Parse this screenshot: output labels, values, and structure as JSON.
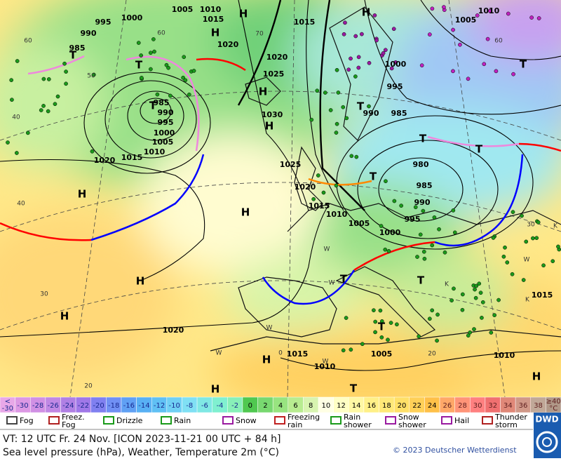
{
  "map_labels": [
    "1005",
    "1010",
    "1000",
    "995",
    "990",
    "985",
    "H",
    "1015",
    "H",
    "1020",
    "1020",
    "1025",
    "H",
    "1030",
    "H",
    "T",
    "T",
    "985",
    "T",
    "990",
    "995",
    "1000",
    "1005",
    "1010",
    "1015",
    "1020",
    "H",
    "H",
    "1025",
    "1020",
    "1015",
    "1010",
    "1005",
    "1000",
    "995",
    "990",
    "985",
    "980",
    "T",
    "T",
    "1000",
    "995",
    "990",
    "985",
    "T",
    "T",
    "1005",
    "1010",
    "1015",
    "H",
    "T",
    "H",
    "H",
    "1020",
    "H",
    "1015",
    "1010",
    "1005",
    "T",
    "T",
    "T",
    "T",
    "H",
    "1010",
    "1015",
    "H"
  ],
  "minor_labels": [
    "60",
    "70",
    "50",
    "40",
    "40",
    "30",
    "20",
    "20",
    "0",
    "W",
    "W",
    "W",
    "W",
    "W",
    "K",
    "K",
    "K",
    "W",
    "30",
    "60",
    "60"
  ],
  "scale": {
    "cells": [
      {
        "top": "<",
        "bottom": "-30",
        "color": "#e8a8e8"
      },
      {
        "bottom": "-30",
        "color": "#dc98e4"
      },
      {
        "bottom": "-28",
        "color": "#d090e4"
      },
      {
        "bottom": "-26",
        "color": "#c088e4"
      },
      {
        "bottom": "-24",
        "color": "#b080e4"
      },
      {
        "bottom": "-22",
        "color": "#a078e8"
      },
      {
        "bottom": "-20",
        "color": "#8080f0"
      },
      {
        "bottom": "-18",
        "color": "#7090f4"
      },
      {
        "bottom": "-16",
        "color": "#60a0f4"
      },
      {
        "bottom": "-14",
        "color": "#58b0f4"
      },
      {
        "bottom": "-12",
        "color": "#60c0f4"
      },
      {
        "bottom": "-10",
        "color": "#70d0f4"
      },
      {
        "bottom": "-8",
        "color": "#80e0f4"
      },
      {
        "bottom": "-6",
        "color": "#80e8e4"
      },
      {
        "bottom": "-4",
        "color": "#80f0d0"
      },
      {
        "bottom": "-2",
        "color": "#88f0b8"
      },
      {
        "bottom": "0",
        "color": "#50c850"
      },
      {
        "bottom": "2",
        "color": "#78d870"
      },
      {
        "bottom": "4",
        "color": "#98e480"
      },
      {
        "bottom": "6",
        "color": "#b8ec90"
      },
      {
        "bottom": "8",
        "color": "#d8f4b0"
      },
      {
        "bottom": "10",
        "color": "#ffffe4"
      },
      {
        "bottom": "12",
        "color": "#ffffc4"
      },
      {
        "bottom": "14",
        "color": "#fff8a4"
      },
      {
        "bottom": "16",
        "color": "#fff088"
      },
      {
        "bottom": "18",
        "color": "#ffe878"
      },
      {
        "bottom": "20",
        "color": "#ffe068"
      },
      {
        "bottom": "22",
        "color": "#ffd058"
      },
      {
        "bottom": "24",
        "color": "#ffc048"
      },
      {
        "bottom": "26",
        "color": "#ffa868"
      },
      {
        "bottom": "28",
        "color": "#ff9478"
      },
      {
        "bottom": "30",
        "color": "#ff8080"
      },
      {
        "bottom": "32",
        "color": "#f07070"
      },
      {
        "bottom": "34",
        "color": "#e08878"
      },
      {
        "bottom": "36",
        "color": "#d09888"
      },
      {
        "bottom": "38",
        "color": "#c0a898"
      },
      {
        "top": "≥40",
        "bottom": "°C",
        "color": "#b09888"
      }
    ]
  },
  "legend": [
    {
      "label": "Fog"
    },
    {
      "label": "Freez.\nFog"
    },
    {
      "label": "Drizzle"
    },
    {
      "label": "Rain"
    },
    {
      "label": "Snow"
    },
    {
      "label": "Freezing\nrain"
    },
    {
      "label": "Rain\nshower"
    },
    {
      "label": "Snow\nshower"
    },
    {
      "label": "Hail"
    },
    {
      "label": "Thunder\nstorm"
    }
  ],
  "footer": {
    "valid_time": "VT: 12 UTC Fr.  24 Nov. [ICON 2023-11-21  00 UTC + 84 h]",
    "description": "Sea level pressure (hPa), Weather, Temperature 2m (°C)",
    "copyright": "© 2023 Deutscher Wetterdienst",
    "logo": "DWD"
  }
}
